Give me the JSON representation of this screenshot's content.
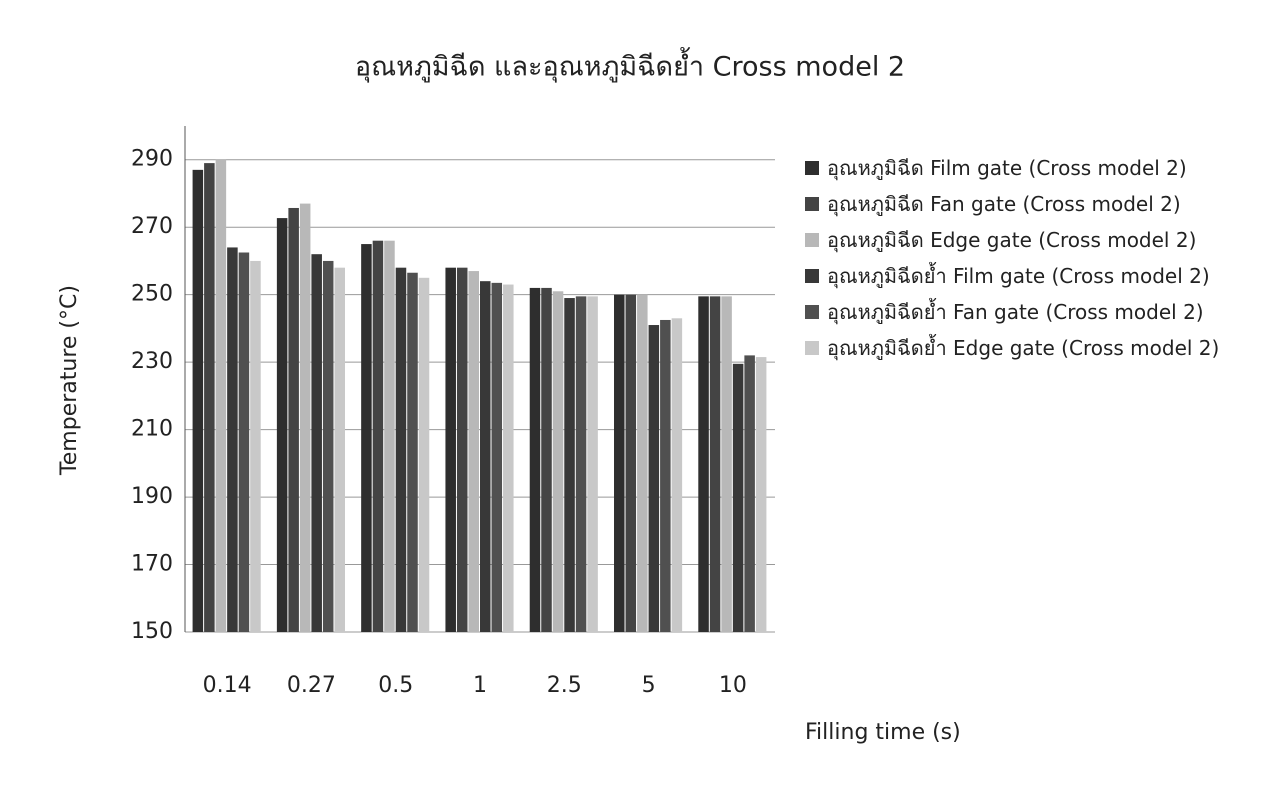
{
  "chart_data": {
    "type": "bar",
    "title": "อุณหภูมิฉีด และอุณหภูมิฉีดย้ำ Cross model 2",
    "x_label": "Filling time (s)",
    "y_label": "Temperature (°C)",
    "categories": [
      "0.14",
      "0.27",
      "0.5",
      "1",
      "2.5",
      "5",
      "10"
    ],
    "series": [
      {
        "name": "อุณหภูมิฉีด Film gate (Cross model 2)",
        "color": "#2e2e2e",
        "values": [
          287,
          272.7,
          265,
          258,
          252,
          250,
          249.5
        ]
      },
      {
        "name": "อุณหภูมิฉีด Fan gate (Cross model 2)",
        "color": "#444444",
        "values": [
          289,
          275.7,
          266,
          258,
          252,
          250,
          249.5
        ]
      },
      {
        "name": "อุณหภูมิฉีด Edge gate (Cross model 2)",
        "color": "#b8b8b8",
        "values": [
          290,
          277,
          266,
          257,
          251,
          250,
          249.5
        ]
      },
      {
        "name": "อุณหภูมิฉีดย้ำ Film gate (Cross model 2)",
        "color": "#383838",
        "values": [
          264,
          262,
          258,
          254,
          249,
          241,
          229.5
        ]
      },
      {
        "name": "อุณหภูมิฉีดย้ำ Fan gate (Cross model 2)",
        "color": "#505050",
        "values": [
          262.5,
          260,
          256.5,
          253.5,
          249.5,
          242.5,
          232
        ]
      },
      {
        "name": "อุณหภูมิฉีดย้ำ Edge gate (Cross model 2)",
        "color": "#c8c8c8",
        "values": [
          260,
          258,
          255,
          253,
          249.5,
          243,
          231.5
        ]
      }
    ],
    "ylim": [
      150,
      300
    ],
    "yticks": [
      150,
      170,
      190,
      210,
      230,
      250,
      270,
      290
    ],
    "grid": true,
    "legend": "right"
  }
}
